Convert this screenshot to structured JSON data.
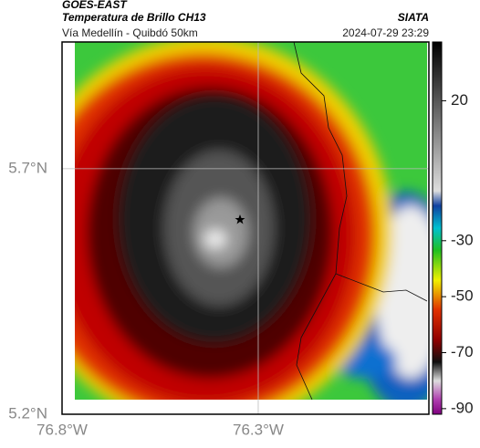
{
  "header": {
    "source": "GOES-EAST",
    "title": "Temperatura de Brillo CH13",
    "brand": "SIATA",
    "subtitle": "Vía Medellín - Quibdó 50km",
    "datetime": "2024-07-29 23:29"
  },
  "map": {
    "xlim": [
      -76.8,
      -75.865
    ],
    "ylim": [
      5.2,
      5.958
    ],
    "xticks": [
      {
        "value": -76.8,
        "label": "76.8°W"
      },
      {
        "value": -76.3,
        "label": "76.3°W"
      }
    ],
    "yticks": [
      {
        "value": 5.2,
        "label": "5.2°N"
      },
      {
        "value": 5.7,
        "label": "5.7°N"
      }
    ]
  },
  "colorbar": {
    "range": [
      -92,
      41
    ],
    "ticks": [
      20,
      -30,
      -50,
      -70,
      -90
    ]
  }
}
